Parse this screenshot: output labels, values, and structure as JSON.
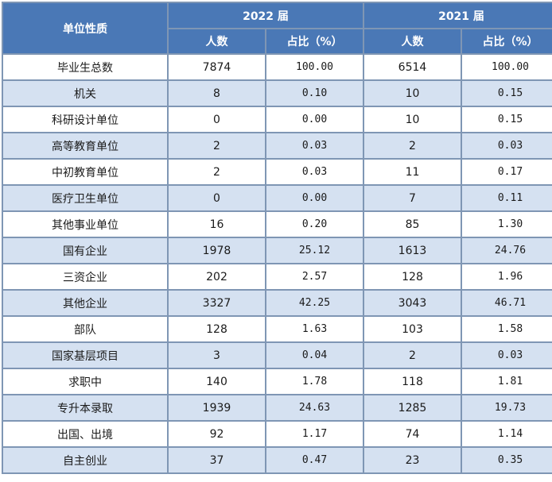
{
  "header": {
    "unit_type": "单位性质",
    "year_a": "2022 届",
    "year_b": "2021 届",
    "count": "人数",
    "ratio": "占比（%）"
  },
  "rows": [
    {
      "name": "毕业生总数",
      "c2022": "7874",
      "p2022": "100.00",
      "c2021": "6514",
      "p2021": "100.00"
    },
    {
      "name": "机关",
      "c2022": "8",
      "p2022": "0.10",
      "c2021": "10",
      "p2021": "0.15"
    },
    {
      "name": "科研设计单位",
      "c2022": "0",
      "p2022": "0.00",
      "c2021": "10",
      "p2021": "0.15"
    },
    {
      "name": "高等教育单位",
      "c2022": "2",
      "p2022": "0.03",
      "c2021": "2",
      "p2021": "0.03"
    },
    {
      "name": "中初教育单位",
      "c2022": "2",
      "p2022": "0.03",
      "c2021": "11",
      "p2021": "0.17"
    },
    {
      "name": "医疗卫生单位",
      "c2022": "0",
      "p2022": "0.00",
      "c2021": "7",
      "p2021": "0.11"
    },
    {
      "name": "其他事业单位",
      "c2022": "16",
      "p2022": "0.20",
      "c2021": "85",
      "p2021": "1.30"
    },
    {
      "name": "国有企业",
      "c2022": "1978",
      "p2022": "25.12",
      "c2021": "1613",
      "p2021": "24.76"
    },
    {
      "name": "三资企业",
      "c2022": "202",
      "p2022": "2.57",
      "c2021": "128",
      "p2021": "1.96"
    },
    {
      "name": "其他企业",
      "c2022": "3327",
      "p2022": "42.25",
      "c2021": "3043",
      "p2021": "46.71"
    },
    {
      "name": "部队",
      "c2022": "128",
      "p2022": "1.63",
      "c2021": "103",
      "p2021": "1.58"
    },
    {
      "name": "国家基层项目",
      "c2022": "3",
      "p2022": "0.04",
      "c2021": "2",
      "p2021": "0.03"
    },
    {
      "name": "求职中",
      "c2022": "140",
      "p2022": "1.78",
      "c2021": "118",
      "p2021": "1.81"
    },
    {
      "name": "专升本录取",
      "c2022": "1939",
      "p2022": "24.63",
      "c2021": "1285",
      "p2021": "19.73"
    },
    {
      "name": "出国、出境",
      "c2022": "92",
      "p2022": "1.17",
      "c2021": "74",
      "p2021": "1.14"
    },
    {
      "name": "自主创业",
      "c2022": "37",
      "p2022": "0.47",
      "c2021": "23",
      "p2021": "0.35"
    }
  ]
}
